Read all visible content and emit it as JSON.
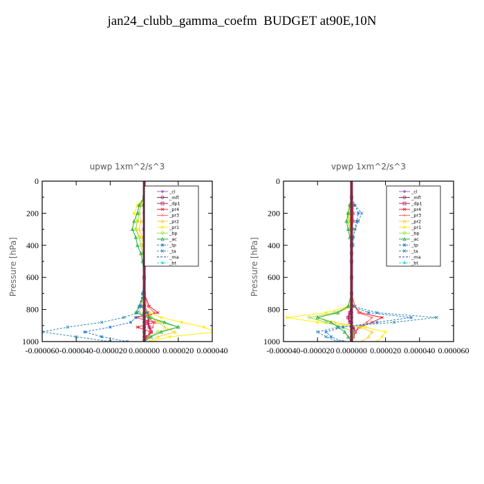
{
  "figure": {
    "title": "jan24_clubb_gamma_coefm  BUDGET at90E,10N"
  },
  "legend_labels": [
    "_cl",
    "_mfl",
    "_dp1",
    "_pr4",
    "_pr3",
    "_pr2",
    "_pr1",
    "_bp",
    "_ac",
    "_tp",
    "_ta",
    "_ma",
    "_bt"
  ],
  "series_colors": {
    "_cl": "#9966cc",
    "_mfl": "#7a1f3d",
    "_dp1": "#c0186b",
    "_pr4": "#e8202a",
    "_pr3": "#ff6060",
    "_pr2": "#ffcc33",
    "_pr1": "#ffee00",
    "_bp": "#99dd33",
    "_ac": "#22aa44",
    "_tp": "#2277dd",
    "_ta": "#2a8aaa",
    "_ma": "#1a4aa0",
    "_bt": "#33dddd"
  },
  "chart_data": [
    {
      "type": "line",
      "title": "upwp   1xm^2/s^3",
      "ylabel": "Pressure [hPa]",
      "xlim": [
        -6e-05,
        4e-05
      ],
      "ylim": [
        1000,
        0
      ],
      "x_ticks": [
        "-0.000060",
        "-0.000040",
        "-0.000020",
        "0.000000",
        "0.000020",
        "0.000040"
      ],
      "y_ticks": [
        "0",
        "200",
        "400",
        "600",
        "800",
        "1000"
      ],
      "levels": [
        100,
        150,
        200,
        250,
        300,
        350,
        400,
        450,
        500,
        600,
        700,
        780,
        820,
        850,
        880,
        910,
        940,
        970,
        1000
      ],
      "series": [
        {
          "name": "_cl",
          "values": [
            0,
            0,
            0,
            0,
            0,
            0,
            0,
            0,
            0,
            0,
            0,
            0,
            0,
            0,
            0,
            0,
            0,
            0,
            0
          ]
        },
        {
          "name": "_mfl",
          "values": [
            0,
            0,
            0,
            0,
            0,
            0,
            0,
            0,
            0,
            0,
            0,
            0,
            0,
            0,
            0,
            0,
            0,
            0,
            0
          ]
        },
        {
          "name": "_dp1",
          "values": [
            0,
            0,
            1e-06,
            1e-06,
            0,
            0,
            0,
            0,
            0,
            0,
            0,
            0,
            2e-06,
            3e-06,
            2e-06,
            3e-06,
            4e-06,
            2e-06,
            0
          ]
        },
        {
          "name": "_pr4",
          "values": [
            0,
            2e-06,
            3e-06,
            4e-06,
            2e-06,
            2e-06,
            0,
            0,
            0,
            0,
            0,
            3e-06,
            8e-06,
            -5e-06,
            6e-06,
            -4e-06,
            4e-06,
            2e-06,
            0
          ]
        },
        {
          "name": "_pr3",
          "values": [
            0,
            1e-06,
            2e-06,
            3e-06,
            2e-06,
            1e-06,
            0,
            0,
            0,
            0,
            0,
            2e-06,
            6e-06,
            2e-06,
            6e-06,
            5e-06,
            3e-06,
            2e-06,
            0
          ]
        },
        {
          "name": "_pr2",
          "values": [
            0,
            -2e-06,
            -3e-06,
            -2e-06,
            -3e-06,
            -1e-06,
            0,
            0,
            0,
            0,
            0,
            0,
            2e-06,
            4e-06,
            8e-06,
            1.2e-05,
            1.8e-05,
            8e-06,
            3e-06
          ]
        },
        {
          "name": "_pr1",
          "values": [
            0,
            -4e-06,
            -6e-06,
            -4e-06,
            -5e-06,
            -2e-06,
            -1e-06,
            0,
            0,
            0,
            0,
            -2e-06,
            3e-06,
            1e-05,
            2.2e-05,
            3.5e-05,
            4.2e-05,
            1.5e-05,
            4e-06
          ]
        },
        {
          "name": "_bp",
          "values": [
            0,
            -2e-06,
            -3e-06,
            -4e-06,
            -5e-06,
            -3e-06,
            -2e-06,
            -1e-06,
            0,
            0,
            0,
            -2e-06,
            -3e-06,
            4e-06,
            1e-05,
            2e-05,
            8e-06,
            3e-06,
            0
          ]
        },
        {
          "name": "_ac",
          "values": [
            0,
            -3e-06,
            -4e-06,
            -6e-06,
            -7e-06,
            -5e-06,
            -4e-06,
            -2e-06,
            -1e-06,
            0,
            0,
            -3e-06,
            -5e-06,
            3e-06,
            1.2e-05,
            2e-05,
            1e-05,
            4e-06,
            0
          ]
        },
        {
          "name": "_tp",
          "values": [
            0,
            5e-06,
            6e-06,
            4e-06,
            3e-06,
            2e-06,
            1e-06,
            0,
            0,
            0,
            -1e-06,
            -2e-06,
            2e-06,
            -5e-06,
            -8e-06,
            -2e-05,
            -3.5e-05,
            -2.5e-05,
            -1e-05
          ]
        },
        {
          "name": "_ta",
          "values": [
            0,
            6e-06,
            8e-06,
            5e-06,
            3e-06,
            2e-06,
            1e-06,
            0,
            0,
            0,
            -1e-06,
            -3e-06,
            -4e-06,
            -1.2e-05,
            -2.5e-05,
            -4.5e-05,
            -6e-05,
            -4e-05,
            -2e-05
          ]
        },
        {
          "name": "_ma",
          "values": [
            0,
            0,
            0,
            0,
            0,
            0,
            0,
            0,
            0,
            0,
            0,
            0,
            0,
            0,
            0,
            0,
            0,
            0,
            0
          ]
        },
        {
          "name": "_bt",
          "values": [
            0,
            0,
            0,
            0,
            0,
            0,
            0,
            0,
            0,
            0,
            0,
            0,
            0,
            0,
            0,
            0,
            0,
            0,
            0
          ]
        }
      ]
    },
    {
      "type": "line",
      "title": "vpwp   1xm^2/s^3",
      "ylabel": "Pressure [hPa]",
      "xlim": [
        -4e-05,
        6e-05
      ],
      "ylim": [
        1000,
        0
      ],
      "x_ticks": [
        "-0.000040",
        "-0.000020",
        "0.000000",
        "0.000020",
        "0.000040",
        "0.000060"
      ],
      "y_ticks": [
        "0",
        "200",
        "400",
        "600",
        "800",
        "1000"
      ],
      "levels": [
        100,
        150,
        200,
        250,
        300,
        350,
        400,
        450,
        500,
        600,
        700,
        780,
        820,
        850,
        880,
        910,
        940,
        970,
        1000
      ],
      "series": [
        {
          "name": "_cl",
          "values": [
            0,
            0,
            0,
            0,
            0,
            0,
            0,
            0,
            0,
            0,
            0,
            0,
            0,
            0,
            0,
            0,
            0,
            0,
            0
          ]
        },
        {
          "name": "_mfl",
          "values": [
            0,
            0,
            0,
            0,
            0,
            0,
            0,
            0,
            0,
            0,
            0,
            0,
            0,
            0,
            0,
            0,
            0,
            0,
            0
          ]
        },
        {
          "name": "_dp1",
          "values": [
            0,
            0,
            0,
            0,
            0,
            0,
            0,
            0,
            0,
            0,
            0,
            0,
            -1e-06,
            -2e-06,
            -1e-06,
            1e-06,
            2e-06,
            1e-06,
            0
          ]
        },
        {
          "name": "_pr4",
          "values": [
            0,
            1e-06,
            1e-06,
            1e-06,
            0,
            0,
            0,
            0,
            0,
            0,
            0,
            2e-06,
            5e-06,
            1.8e-05,
            1.2e-05,
            5e-06,
            2e-06,
            1e-06,
            0
          ]
        },
        {
          "name": "_pr3",
          "values": [
            0,
            1e-06,
            1e-06,
            1e-06,
            0,
            0,
            0,
            0,
            0,
            0,
            0,
            2e-06,
            4e-06,
            1.2e-05,
            9e-06,
            4e-06,
            2e-06,
            1e-06,
            0
          ]
        },
        {
          "name": "_pr2",
          "values": [
            0,
            -1e-06,
            -1e-06,
            -1e-06,
            0,
            0,
            0,
            0,
            0,
            0,
            0,
            0,
            -8e-06,
            -2e-05,
            -1e-05,
            5e-06,
            1.2e-05,
            1e-05,
            6e-06
          ]
        },
        {
          "name": "_pr1",
          "values": [
            0,
            -1e-06,
            -2e-06,
            -1e-06,
            -1e-06,
            0,
            0,
            0,
            0,
            0,
            0,
            -2e-06,
            -1.5e-05,
            -3.8e-05,
            -2e-05,
            8e-06,
            2e-05,
            1.8e-05,
            1.5e-05
          ]
        },
        {
          "name": "_bp",
          "values": [
            0,
            -1e-06,
            -2e-06,
            -2e-06,
            -1e-06,
            0,
            0,
            0,
            0,
            0,
            0,
            -1e-06,
            -1e-05,
            -2.5e-05,
            -1.5e-05,
            -5e-06,
            1e-06,
            1e-06,
            0
          ]
        },
        {
          "name": "_ac",
          "values": [
            0,
            -1e-06,
            -2e-06,
            -3e-06,
            -2e-06,
            -1e-06,
            0,
            0,
            0,
            0,
            0,
            -2e-06,
            -8e-06,
            -2e-05,
            -1.2e-05,
            -8e-06,
            -4e-06,
            -2e-06,
            0
          ]
        },
        {
          "name": "_tp",
          "values": [
            0,
            2e-06,
            4e-06,
            3e-06,
            2e-06,
            1e-06,
            0,
            0,
            0,
            0,
            0,
            0,
            1e-05,
            3.5e-05,
            1.5e-05,
            -5e-06,
            -1.5e-05,
            -1.2e-05,
            -5e-06
          ]
        },
        {
          "name": "_ta",
          "values": [
            0,
            2e-06,
            6e-06,
            4e-06,
            2e-06,
            1e-06,
            1e-06,
            0,
            0,
            0,
            0,
            1e-06,
            1.5e-05,
            5e-05,
            2.5e-05,
            -8e-06,
            -2e-05,
            -1.5e-05,
            -8e-06
          ]
        },
        {
          "name": "_ma",
          "values": [
            0,
            0,
            0,
            0,
            0,
            0,
            0,
            0,
            0,
            0,
            0,
            0,
            0,
            0,
            0,
            0,
            0,
            0,
            0
          ]
        },
        {
          "name": "_bt",
          "values": [
            0,
            0,
            0,
            0,
            0,
            0,
            0,
            0,
            0,
            0,
            0,
            0,
            0,
            0,
            0,
            0,
            0,
            0,
            0
          ]
        }
      ]
    }
  ]
}
